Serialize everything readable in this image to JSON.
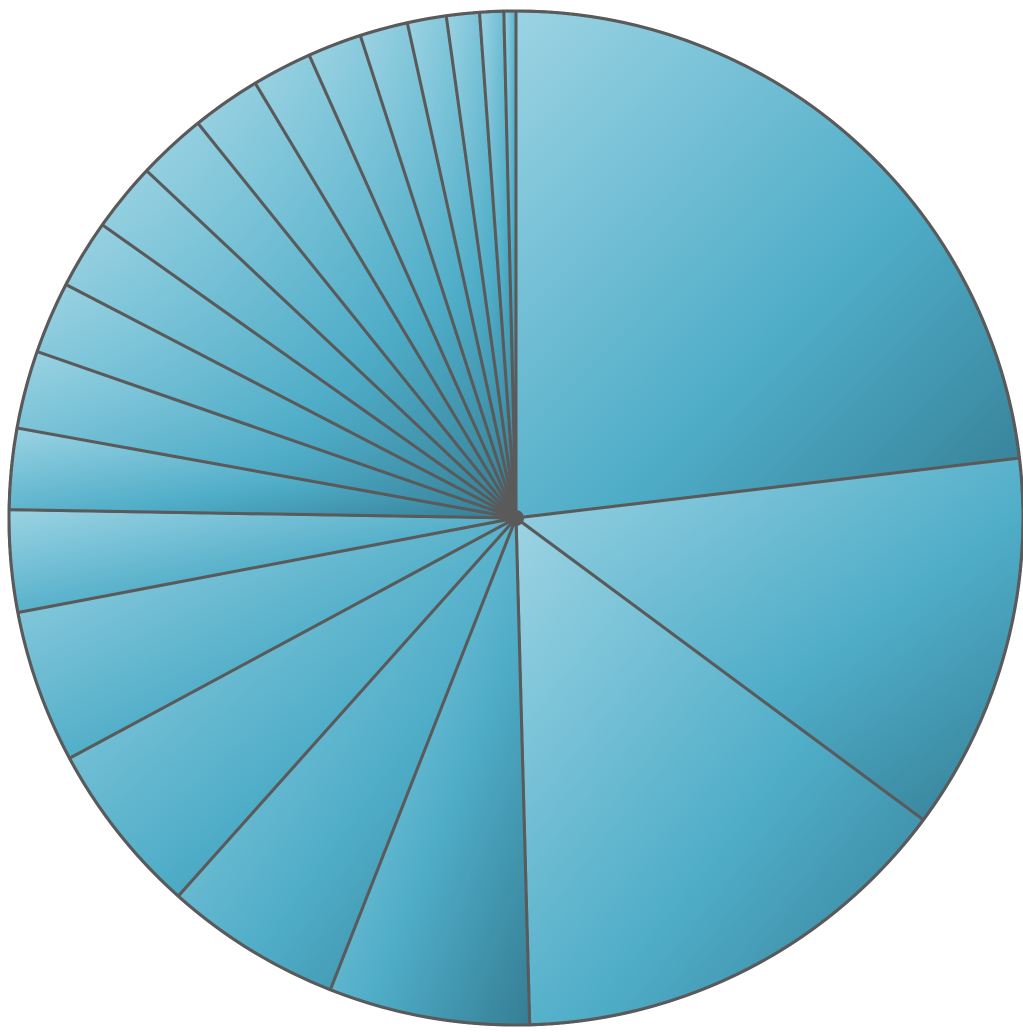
{
  "chart_data": {
    "type": "pie",
    "title": "",
    "start_angle_deg": 0,
    "direction": "clockwise",
    "values": [
      24.2,
      12.6,
      15.1,
      6.7,
      5.9,
      5.8,
      5.1,
      3.4,
      2.7,
      2.6,
      2.4,
      2.3,
      2.3,
      2.3,
      2.3,
      2.0,
      1.8,
      1.6,
      1.3,
      1.1,
      0.8,
      0.4
    ],
    "gradient": {
      "light": "#9bd3e3",
      "mid": "#4fadc8",
      "dark": "#357e95"
    },
    "stroke_color": "#5a5a5a"
  }
}
